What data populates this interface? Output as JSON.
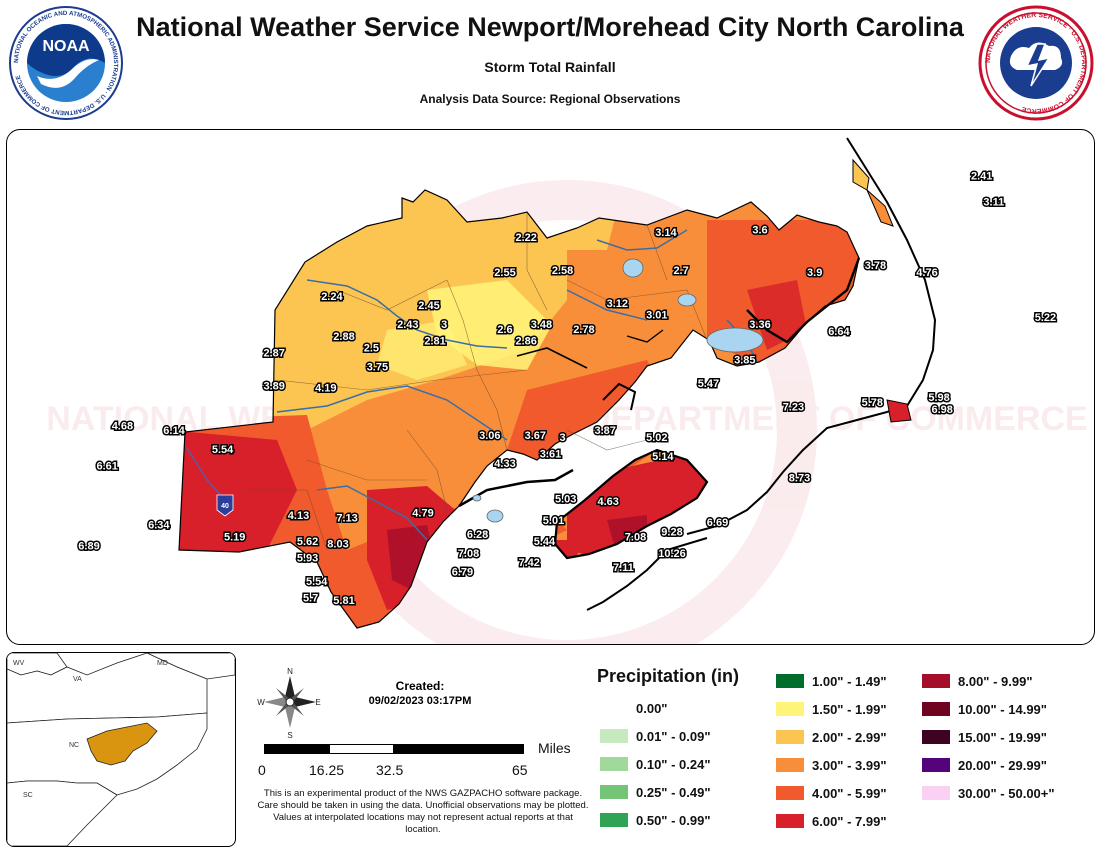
{
  "header": {
    "title": "National Weather Service Newport/Morehead City North Carolina",
    "subtitle": "Storm Total Rainfall",
    "source": "Analysis Data Source: Regional Observations",
    "noaa_logo_text": "NOAA",
    "noaa_ring_text": "NATIONAL OCEANIC AND ATMOSPHERIC ADMINISTRATION · U.S. DEPARTMENT OF COMMERCE",
    "nws_ring_text": "NATIONAL WEATHER SERVICE · U.S. DEPARTMENT OF COMMERCE"
  },
  "map": {
    "watermark_text": "NATIONAL WEATHER SERVICE · DEPARTMENT OF COMMERCE",
    "highway_label": "40",
    "observations": [
      {
        "value": "2.41",
        "lon": -75.76,
        "lat": 36.21
      },
      {
        "value": "3.11",
        "lon": -75.72,
        "lat": 36.1
      },
      {
        "value": "2.22",
        "lon": -77.26,
        "lat": 35.95
      },
      {
        "value": "3.14",
        "lon": -76.8,
        "lat": 35.97
      },
      {
        "value": "3.6",
        "lon": -76.49,
        "lat": 35.98
      },
      {
        "value": "2.55",
        "lon": -77.33,
        "lat": 35.8
      },
      {
        "value": "2.58",
        "lon": -77.14,
        "lat": 35.81
      },
      {
        "value": "2.7",
        "lon": -76.75,
        "lat": 35.81
      },
      {
        "value": "3.9",
        "lon": -76.31,
        "lat": 35.8
      },
      {
        "value": "3.78",
        "lon": -76.11,
        "lat": 35.83
      },
      {
        "value": "4.76",
        "lon": -75.94,
        "lat": 35.8
      },
      {
        "value": "2.24",
        "lon": -77.9,
        "lat": 35.7
      },
      {
        "value": "2.45",
        "lon": -77.58,
        "lat": 35.66
      },
      {
        "value": "3.12",
        "lon": -76.96,
        "lat": 35.67
      },
      {
        "value": "3.01",
        "lon": -76.83,
        "lat": 35.62
      },
      {
        "value": "5.22",
        "lon": -75.55,
        "lat": 35.61
      },
      {
        "value": "2.43",
        "lon": -77.65,
        "lat": 35.58
      },
      {
        "value": "3",
        "lon": -77.53,
        "lat": 35.58
      },
      {
        "value": "3.48",
        "lon": -77.21,
        "lat": 35.58
      },
      {
        "value": "2.78",
        "lon": -77.07,
        "lat": 35.56
      },
      {
        "value": "3.36",
        "lon": -76.49,
        "lat": 35.58
      },
      {
        "value": "6.64",
        "lon": -76.23,
        "lat": 35.55
      },
      {
        "value": "2.88",
        "lon": -77.86,
        "lat": 35.53
      },
      {
        "value": "2.81",
        "lon": -77.56,
        "lat": 35.51
      },
      {
        "value": "2.6",
        "lon": -77.33,
        "lat": 35.56
      },
      {
        "value": "2.86",
        "lon": -77.26,
        "lat": 35.51
      },
      {
        "value": "2.5",
        "lon": -77.77,
        "lat": 35.48
      },
      {
        "value": "2.87",
        "lon": -78.09,
        "lat": 35.46
      },
      {
        "value": "3.85",
        "lon": -76.54,
        "lat": 35.43
      },
      {
        "value": "3.75",
        "lon": -77.75,
        "lat": 35.4
      },
      {
        "value": "3.89",
        "lon": -78.09,
        "lat": 35.32
      },
      {
        "value": "4.19",
        "lon": -77.92,
        "lat": 35.31
      },
      {
        "value": "5.47",
        "lon": -76.66,
        "lat": 35.33
      },
      {
        "value": "5.98",
        "lon": -75.9,
        "lat": 35.27
      },
      {
        "value": "5.78",
        "lon": -76.12,
        "lat": 35.25
      },
      {
        "value": "7.23",
        "lon": -76.38,
        "lat": 35.23
      },
      {
        "value": "6.98",
        "lon": -75.89,
        "lat": 35.22
      },
      {
        "value": "4.68",
        "lon": -78.59,
        "lat": 35.15
      },
      {
        "value": "6.14",
        "lon": -78.42,
        "lat": 35.13
      },
      {
        "value": "3.06",
        "lon": -77.38,
        "lat": 35.11
      },
      {
        "value": "3.67",
        "lon": -77.23,
        "lat": 35.11
      },
      {
        "value": "3",
        "lon": -77.14,
        "lat": 35.1
      },
      {
        "value": "3.87",
        "lon": -77.0,
        "lat": 35.13
      },
      {
        "value": "5.02",
        "lon": -76.83,
        "lat": 35.1
      },
      {
        "value": "5.54",
        "lon": -78.26,
        "lat": 35.05
      },
      {
        "value": "3.61",
        "lon": -77.18,
        "lat": 35.03
      },
      {
        "value": "5.14",
        "lon": -76.81,
        "lat": 35.02
      },
      {
        "value": "4.33",
        "lon": -77.33,
        "lat": 34.99
      },
      {
        "value": "6.61",
        "lon": -78.64,
        "lat": 34.98
      },
      {
        "value": "8.73",
        "lon": -76.36,
        "lat": 34.93
      },
      {
        "value": "5.03",
        "lon": -77.13,
        "lat": 34.84
      },
      {
        "value": "4.63",
        "lon": -76.99,
        "lat": 34.83
      },
      {
        "value": "4.13",
        "lon": -78.01,
        "lat": 34.77
      },
      {
        "value": "7.13",
        "lon": -77.85,
        "lat": 34.76
      },
      {
        "value": "4.79",
        "lon": -77.6,
        "lat": 34.78
      },
      {
        "value": "5.01",
        "lon": -77.17,
        "lat": 34.75
      },
      {
        "value": "6.34",
        "lon": -78.47,
        "lat": 34.73
      },
      {
        "value": "6.69",
        "lon": -76.63,
        "lat": 34.74
      },
      {
        "value": "9.28",
        "lon": -76.78,
        "lat": 34.7
      },
      {
        "value": "5.19",
        "lon": -78.22,
        "lat": 34.68
      },
      {
        "value": "6.28",
        "lon": -77.42,
        "lat": 34.69
      },
      {
        "value": "7.08",
        "lon": -76.9,
        "lat": 34.68
      },
      {
        "value": "5.62",
        "lon": -77.98,
        "lat": 34.66
      },
      {
        "value": "8.03",
        "lon": -77.88,
        "lat": 34.65
      },
      {
        "value": "5.44",
        "lon": -77.2,
        "lat": 34.66
      },
      {
        "value": "6.89",
        "lon": -78.7,
        "lat": 34.64
      },
      {
        "value": "7.08",
        "lon": -77.45,
        "lat": 34.61
      },
      {
        "value": "10.26",
        "lon": -76.78,
        "lat": 34.61
      },
      {
        "value": "5.93",
        "lon": -77.98,
        "lat": 34.59
      },
      {
        "value": "7.42",
        "lon": -77.25,
        "lat": 34.57
      },
      {
        "value": "7.11",
        "lon": -76.94,
        "lat": 34.55
      },
      {
        "value": "6.79",
        "lon": -77.47,
        "lat": 34.53
      },
      {
        "value": "5.54",
        "lon": -77.95,
        "lat": 34.49
      },
      {
        "value": "5.7",
        "lon": -77.97,
        "lat": 34.42
      },
      {
        "value": "5.81",
        "lon": -77.86,
        "lat": 34.41
      }
    ]
  },
  "inset": {
    "states": [
      "WV",
      "MD",
      "VA",
      "NC",
      "SC"
    ]
  },
  "compass": {
    "n": "N",
    "s": "S",
    "e": "E",
    "w": "W"
  },
  "created": {
    "label": "Created:",
    "value": "09/02/2023 03:17PM"
  },
  "scale": {
    "labels": [
      "0",
      "16.25",
      "32.5",
      "65"
    ],
    "unit": "Miles"
  },
  "disclaimer": "This is an experimental product of the NWS GAZPACHO software package. Care should be taken in using the data. Unofficial observations may be plotted. Values at interpolated locations may not represent actual reports at that location.",
  "legend": {
    "title": "Precipitation (in)",
    "items": [
      {
        "label": "0.00\"",
        "color": ""
      },
      {
        "label": "0.01\" - 0.09\"",
        "color": "#c7e9c0"
      },
      {
        "label": "0.10\" - 0.24\"",
        "color": "#a1d99b"
      },
      {
        "label": "0.25\" - 0.49\"",
        "color": "#74c476"
      },
      {
        "label": "0.50\" - 0.99\"",
        "color": "#31a354"
      },
      {
        "label": "1.00\" - 1.49\"",
        "color": "#006d2c"
      },
      {
        "label": "1.50\" - 1.99\"",
        "color": "#fff47a"
      },
      {
        "label": "2.00\" - 2.99\"",
        "color": "#fcc451"
      },
      {
        "label": "3.00\" - 3.99\"",
        "color": "#f98e3a"
      },
      {
        "label": "4.00\" - 5.99\"",
        "color": "#f05a2c"
      },
      {
        "label": "6.00\" - 7.99\"",
        "color": "#d7202a"
      },
      {
        "label": "8.00\" - 9.99\"",
        "color": "#a50e2a"
      },
      {
        "label": "10.00\" - 14.99\"",
        "color": "#6e0420"
      },
      {
        "label": "15.00\" - 19.99\"",
        "color": "#3d0320"
      },
      {
        "label": "20.00\" - 29.99\"",
        "color": "#54037a"
      },
      {
        "label": "30.00\" - 50.00+\"",
        "color": "#fbd1f3"
      }
    ]
  }
}
